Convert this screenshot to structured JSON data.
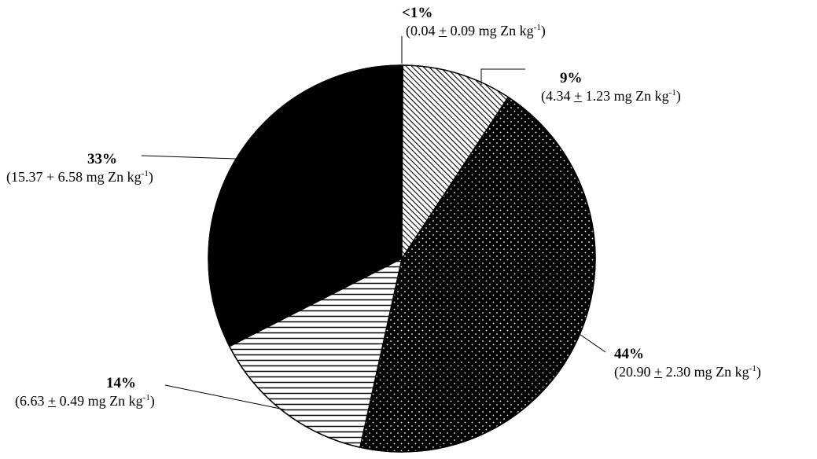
{
  "chart_data": {
    "type": "pie",
    "slices": [
      {
        "key": "s1",
        "percent_label": "<1%",
        "value": 0.04,
        "sd": 0.09,
        "pm": "±",
        "unit": "mg Zn kg",
        "unit_sup": "-1",
        "fill": "solid-white"
      },
      {
        "key": "s2",
        "percent_label": "9%",
        "value": 4.34,
        "sd": 1.23,
        "pm": "±",
        "unit": "mg Zn kg",
        "unit_sup": "-1",
        "fill": "diagonal-hatch"
      },
      {
        "key": "s3",
        "percent_label": "44%",
        "value": 20.9,
        "sd": 2.3,
        "pm": "±",
        "unit": "mg Zn kg",
        "unit_sup": "-1",
        "fill": "white-dots-on-black"
      },
      {
        "key": "s4",
        "percent_label": "14%",
        "value": 6.63,
        "sd": 0.49,
        "pm": "±",
        "unit": "mg Zn kg",
        "unit_sup": "-1",
        "fill": "horizontal-lines"
      },
      {
        "key": "s5",
        "percent_label": "33%",
        "value": 15.37,
        "sd": 6.58,
        "pm": "+",
        "unit": "mg Zn kg",
        "unit_sup": "-1",
        "fill": "solid-black"
      }
    ],
    "labels": {
      "s1": {
        "pct": "<1%",
        "pre": "(0.04 ",
        "pm": "+",
        "post": " 0.09 mg Zn kg",
        "sup": "-1",
        "close": ")"
      },
      "s2": {
        "pct": "9%",
        "pre": "(4.34 ",
        "pm": "+",
        "post": " 1.23 mg Zn kg",
        "sup": "-1",
        "close": ")"
      },
      "s3": {
        "pct": "44%",
        "pre": "(20.90 ",
        "pm": "+",
        "post": " 2.30 mg Zn kg",
        "sup": "-1",
        "close": ")"
      },
      "s4": {
        "pct": "14%",
        "pre": "(6.63 ",
        "pm": "+",
        "post": " 0.49 mg Zn kg",
        "sup": "-1",
        "close": ")"
      },
      "s5": {
        "pct": "33%",
        "pre": "(15.37 + 6.58 mg Zn kg",
        "pm": "",
        "post": "",
        "sup": "-1",
        "close": ")"
      }
    },
    "colors": {
      "ink": "#000000",
      "paper": "#ffffff"
    }
  }
}
